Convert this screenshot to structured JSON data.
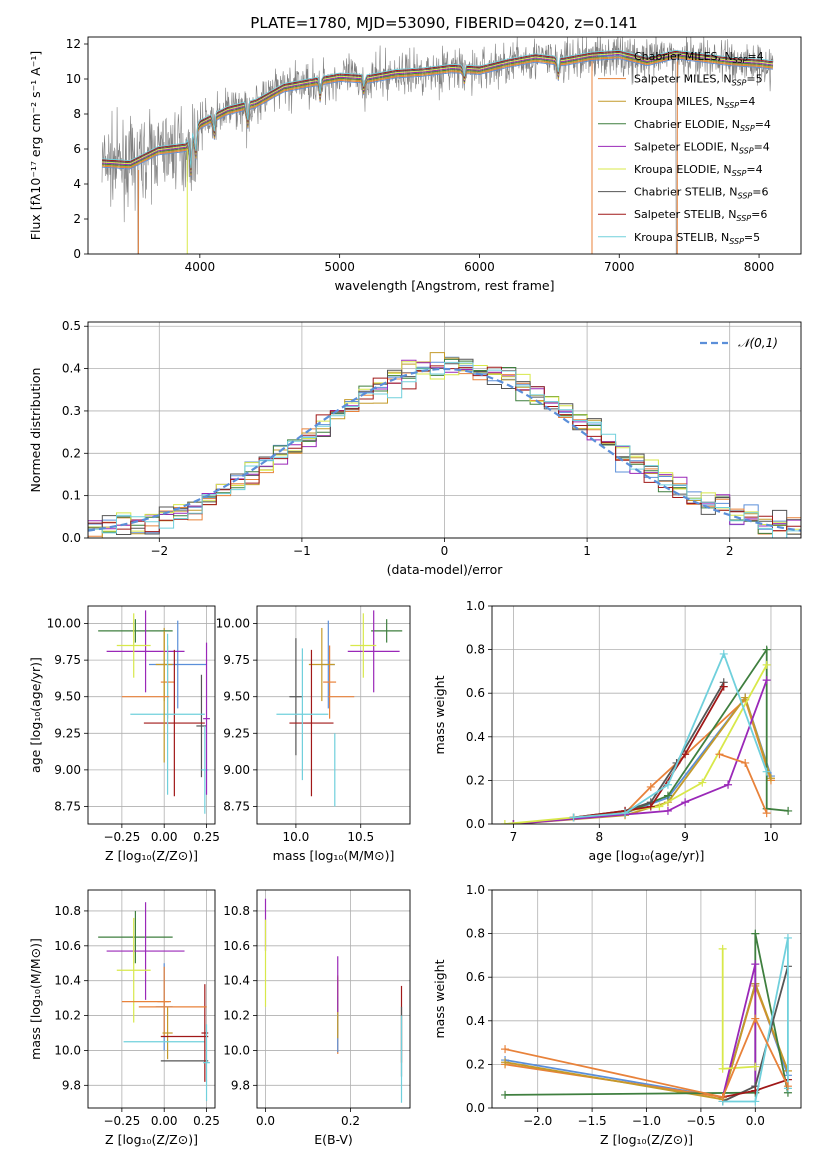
{
  "figure": {
    "title": "PLATE=1780, MJD=53090, FIBERID=0420, z=0.141"
  },
  "colors": {
    "chabrier_miles": "#5b8fd9",
    "salpeter_miles": "#e8823a",
    "kroupa_miles": "#c49a2a",
    "chabrier_elodie": "#3f7f3f",
    "salpeter_elodie": "#9a28b8",
    "kroupa_elodie": "#d8e84a",
    "chabrier_stelib": "#555555",
    "salpeter_stelib": "#a01818",
    "kroupa_stelib": "#70d0dc",
    "normal": "#5b8fd9",
    "data": "#808080"
  },
  "legend_labels": [
    {
      "key": "chabrier_miles",
      "label": "Chabrier MILES, N",
      "sub": "SSP",
      "val": "=4"
    },
    {
      "key": "salpeter_miles",
      "label": "Salpeter MILES, N",
      "sub": "SSP",
      "val": "=5"
    },
    {
      "key": "kroupa_miles",
      "label": "Kroupa MILES, N",
      "sub": "SSP",
      "val": "=4"
    },
    {
      "key": "chabrier_elodie",
      "label": "Chabrier ELODIE, N",
      "sub": "SSP",
      "val": "=4"
    },
    {
      "key": "salpeter_elodie",
      "label": "Salpeter ELODIE, N",
      "sub": "SSP",
      "val": "=4"
    },
    {
      "key": "kroupa_elodie",
      "label": "Kroupa ELODIE, N",
      "sub": "SSP",
      "val": "=4"
    },
    {
      "key": "chabrier_stelib",
      "label": "Chabrier STELIB, N",
      "sub": "SSP",
      "val": "=6"
    },
    {
      "key": "salpeter_stelib",
      "label": "Salpeter STELIB, N",
      "sub": "SSP",
      "val": "=6"
    },
    {
      "key": "kroupa_stelib",
      "label": "Kroupa STELIB, N",
      "sub": "SSP",
      "val": "=5"
    }
  ],
  "chart_data": [
    {
      "id": "spectrum",
      "type": "line",
      "xlabel": "wavelength [Angstrom, rest frame]",
      "ylabel": "Flux [fλ10⁻¹⁷ erg cm⁻² s⁻¹ A⁻¹]",
      "xlim": [
        3200,
        8300
      ],
      "ylim": [
        0,
        12.4
      ],
      "xticks": [
        4000,
        5000,
        6000,
        7000,
        8000
      ],
      "yticks": [
        0,
        2,
        4,
        6,
        8,
        10,
        12
      ],
      "grid": false,
      "legend": "top-right",
      "continuum_nodes": [
        [
          3300,
          5.2
        ],
        [
          3500,
          5.1
        ],
        [
          3700,
          5.9
        ],
        [
          3900,
          6.1
        ],
        [
          4000,
          7.4
        ],
        [
          4200,
          8.2
        ],
        [
          4400,
          8.6
        ],
        [
          4600,
          9.5
        ],
        [
          4800,
          9.8
        ],
        [
          5000,
          10.1
        ],
        [
          5200,
          10.0
        ],
        [
          5400,
          10.3
        ],
        [
          5600,
          10.4
        ],
        [
          5800,
          10.6
        ],
        [
          6000,
          10.5
        ],
        [
          6200,
          10.9
        ],
        [
          6400,
          11.2
        ],
        [
          6600,
          11.0
        ],
        [
          6800,
          11.3
        ],
        [
          7000,
          11.4
        ],
        [
          7200,
          11.0
        ],
        [
          7400,
          11.4
        ],
        [
          7600,
          11.2
        ],
        [
          7800,
          11.0
        ],
        [
          8000,
          10.9
        ],
        [
          8100,
          10.8
        ]
      ]
    },
    {
      "id": "residuals",
      "type": "histogram",
      "xlabel": "(data-model)/error",
      "ylabel": "Normed distribution",
      "xlim": [
        -2.5,
        2.5
      ],
      "ylim": [
        0,
        0.51
      ],
      "xticks": [
        -2,
        -1,
        0,
        1,
        2
      ],
      "yticks": [
        0.0,
        0.1,
        0.2,
        0.3,
        0.4,
        0.5
      ],
      "grid": true,
      "legend": "top-right",
      "reference_curve": "𝒩(0,1)",
      "bin_width": 0.1
    },
    {
      "id": "age_vs_Z",
      "type": "errorbar",
      "xlabel": "Z [log₁₀(Z/Z⊙)]",
      "ylabel": "age  [log₁₀(age/yr)]",
      "xlim": [
        -0.45,
        0.3
      ],
      "ylim": [
        8.63,
        10.12
      ],
      "xticks": [
        -0.25,
        0.0,
        0.25
      ],
      "yticks": [
        8.75,
        9.0,
        9.25,
        9.5,
        9.75,
        10.0
      ],
      "grid": true,
      "points": [
        {
          "s": "chabrier_miles",
          "x": 0.08,
          "y": 9.72,
          "xe": 0.17,
          "ye": 0.3
        },
        {
          "s": "salpeter_miles",
          "x": 0.02,
          "y": 9.6,
          "xe": 0.04,
          "ye": 0.25
        },
        {
          "s": "kroupa_miles",
          "x": 0.0,
          "y": 9.72,
          "xe": 0.05,
          "ye": 0.25
        },
        {
          "s": "chabrier_elodie",
          "x": -0.17,
          "y": 9.95,
          "xe": 0.22,
          "ye": 0.08
        },
        {
          "s": "salpeter_elodie",
          "x": -0.11,
          "y": 9.81,
          "xe": 0.23,
          "ye": 0.28
        },
        {
          "s": "kroupa_elodie",
          "x": -0.18,
          "y": 9.85,
          "xe": 0.1,
          "ye": 0.22
        },
        {
          "s": "chabrier_stelib",
          "x": 0.22,
          "y": 9.3,
          "xe": 0.03,
          "ye": 0.35
        },
        {
          "s": "salpeter_stelib",
          "x": 0.06,
          "y": 9.32,
          "xe": 0.18,
          "ye": 0.5
        },
        {
          "s": "kroupa_stelib",
          "x": 0.02,
          "y": 9.38,
          "xe": 0.22,
          "ye": 0.55
        },
        {
          "s": "kroupa_stelib",
          "x": 0.24,
          "y": 9.0,
          "xe": 0.02,
          "ye": 0.3
        },
        {
          "s": "salpeter_elodie",
          "x": 0.25,
          "y": 9.35,
          "xe": 0.02,
          "ye": 0.52
        },
        {
          "s": "kroupa_miles",
          "x": 0.0,
          "y": 9.5,
          "xe": 0.0,
          "ye": 0.45
        },
        {
          "s": "salpeter_miles",
          "x": -0.11,
          "y": 9.5,
          "xe": 0.14,
          "ye": 0.0
        }
      ]
    },
    {
      "id": "age_vs_mass",
      "type": "errorbar",
      "xlabel": "mass [log₁₀(M/M⊙)]",
      "ylabel": "",
      "xlim": [
        9.7,
        10.88
      ],
      "ylim": [
        8.63,
        10.12
      ],
      "xticks": [
        10.0,
        10.5
      ],
      "yticks": [
        8.75,
        9.0,
        9.25,
        9.5,
        9.75,
        10.0
      ],
      "grid": true,
      "points": [
        {
          "s": "chabrier_miles",
          "x": 10.25,
          "y": 9.72,
          "xe": 0.05,
          "ye": 0.3
        },
        {
          "s": "salpeter_miles",
          "x": 10.26,
          "y": 9.6,
          "xe": 0.05,
          "ye": 0.25
        },
        {
          "s": "kroupa_miles",
          "x": 10.2,
          "y": 9.72,
          "xe": 0.1,
          "ye": 0.25
        },
        {
          "s": "chabrier_elodie",
          "x": 10.7,
          "y": 9.95,
          "xe": 0.12,
          "ye": 0.08
        },
        {
          "s": "salpeter_elodie",
          "x": 10.6,
          "y": 9.81,
          "xe": 0.2,
          "ye": 0.28
        },
        {
          "s": "kroupa_elodie",
          "x": 10.52,
          "y": 9.85,
          "xe": 0.1,
          "ye": 0.22
        },
        {
          "s": "chabrier_stelib",
          "x": 10.0,
          "y": 9.5,
          "xe": 0.05,
          "ye": 0.4
        },
        {
          "s": "salpeter_stelib",
          "x": 10.12,
          "y": 9.32,
          "xe": 0.17,
          "ye": 0.5
        },
        {
          "s": "kroupa_stelib",
          "x": 10.05,
          "y": 9.38,
          "xe": 0.2,
          "ye": 0.45
        },
        {
          "s": "salpeter_miles",
          "x": 10.35,
          "y": 9.5,
          "xe": 0.1,
          "ye": 0.0
        },
        {
          "s": "kroupa_stelib",
          "x": 10.3,
          "y": 9.0,
          "xe": 0.0,
          "ye": 0.25
        }
      ]
    },
    {
      "id": "weight_vs_age",
      "type": "line",
      "xlabel": "age  [log₁₀(age/yr)]",
      "ylabel": "mass weight",
      "xlim": [
        6.75,
        10.35
      ],
      "ylim": [
        0,
        1.0
      ],
      "xticks": [
        7,
        8,
        9,
        10
      ],
      "yticks": [
        0.0,
        0.2,
        0.4,
        0.6,
        0.8,
        1.0
      ],
      "grid": true,
      "series": [
        {
          "s": "chabrier_miles",
          "x": [
            7.0,
            8.3,
            8.8,
            9.7,
            10.0
          ],
          "y": [
            0.0,
            0.05,
            0.12,
            0.58,
            0.22
          ]
        },
        {
          "s": "salpeter_miles",
          "x": [
            7.0,
            8.3,
            8.6,
            9.7,
            10.0
          ],
          "y": [
            0.0,
            0.05,
            0.17,
            0.57,
            0.2
          ]
        },
        {
          "s": "kroupa_miles",
          "x": [
            7.0,
            8.3,
            8.8,
            9.7,
            10.0
          ],
          "y": [
            0.0,
            0.04,
            0.1,
            0.58,
            0.21
          ]
        },
        {
          "s": "chabrier_elodie",
          "x": [
            7.0,
            8.3,
            8.8,
            9.95,
            9.95,
            10.2
          ],
          "y": [
            0.0,
            0.05,
            0.13,
            0.8,
            0.07,
            0.06
          ]
        },
        {
          "s": "salpeter_elodie",
          "x": [
            7.0,
            8.8,
            9.0,
            9.5,
            9.95
          ],
          "y": [
            0.0,
            0.06,
            0.1,
            0.18,
            0.66
          ]
        },
        {
          "s": "kroupa_elodie",
          "x": [
            6.9,
            7.7,
            8.7,
            9.2,
            9.95
          ],
          "y": [
            0.0,
            0.03,
            0.08,
            0.19,
            0.73
          ]
        },
        {
          "s": "chabrier_stelib",
          "x": [
            7.7,
            8.3,
            8.6,
            8.9,
            9.45
          ],
          "y": [
            0.03,
            0.06,
            0.1,
            0.28,
            0.65
          ]
        },
        {
          "s": "salpeter_stelib",
          "x": [
            7.7,
            8.3,
            8.6,
            9.0,
            9.45
          ],
          "y": [
            0.03,
            0.06,
            0.08,
            0.32,
            0.63
          ]
        },
        {
          "s": "kroupa_stelib",
          "x": [
            7.7,
            8.3,
            8.8,
            9.45,
            9.95
          ],
          "y": [
            0.03,
            0.05,
            0.18,
            0.78,
            0.24
          ]
        },
        {
          "s": "salpeter_miles",
          "x": [
            9.4,
            9.7,
            9.95
          ],
          "y": [
            0.32,
            0.28,
            0.05
          ]
        }
      ]
    },
    {
      "id": "mass_vs_Z",
      "type": "errorbar",
      "xlabel": "Z [log₁₀(Z/Z⊙)]",
      "ylabel": "mass [log₁₀(M/M⊙)]",
      "xlim": [
        -0.45,
        0.3
      ],
      "ylim": [
        9.67,
        10.92
      ],
      "xticks": [
        -0.25,
        0.0,
        0.25
      ],
      "yticks": [
        9.8,
        10.0,
        10.2,
        10.4,
        10.6,
        10.8
      ],
      "grid": true,
      "points": [
        {
          "s": "chabrier_miles",
          "x": 0.0,
          "y": 10.25,
          "xe": 0.05,
          "ye": 0.25
        },
        {
          "s": "salpeter_miles",
          "x": 0.0,
          "y": 10.28,
          "xe": 0.04,
          "ye": 0.2
        },
        {
          "s": "kroupa_miles",
          "x": 0.02,
          "y": 10.1,
          "xe": 0.03,
          "ye": 0.15
        },
        {
          "s": "chabrier_elodie",
          "x": -0.17,
          "y": 10.65,
          "xe": 0.22,
          "ye": 0.15
        },
        {
          "s": "salpeter_elodie",
          "x": -0.11,
          "y": 10.57,
          "xe": 0.23,
          "ye": 0.28
        },
        {
          "s": "kroupa_elodie",
          "x": -0.18,
          "y": 10.46,
          "xe": 0.1,
          "ye": 0.3
        },
        {
          "s": "chabrier_stelib",
          "x": 0.12,
          "y": 9.94,
          "xe": 0.14,
          "ye": 0.0
        },
        {
          "s": "salpeter_stelib",
          "x": 0.12,
          "y": 10.08,
          "xe": 0.14,
          "ye": 0.0
        },
        {
          "s": "kroupa_stelib",
          "x": 0.0,
          "y": 10.05,
          "xe": 0.24,
          "ye": 0.0
        },
        {
          "s": "salpeter_stelib",
          "x": 0.24,
          "y": 10.1,
          "xe": 0.02,
          "ye": 0.28
        },
        {
          "s": "salpeter_miles",
          "x": 0.05,
          "y": 10.25,
          "xe": 0.2,
          "ye": 0.0
        },
        {
          "s": "kroupa_stelib",
          "x": 0.25,
          "y": 9.93,
          "xe": 0.02,
          "ye": 0.22
        },
        {
          "s": "salpeter_miles",
          "x": -0.11,
          "y": 10.28,
          "xe": 0.14,
          "ye": 0.0
        }
      ]
    },
    {
      "id": "mass_vs_EBV",
      "type": "errorbar",
      "xlabel": "E(B-V)",
      "ylabel": "",
      "xlim": [
        -0.02,
        0.34
      ],
      "ylim": [
        9.67,
        10.92
      ],
      "xticks": [
        0.0,
        0.2
      ],
      "yticks": [
        9.8,
        10.0,
        10.2,
        10.4,
        10.6,
        10.8
      ],
      "grid": true,
      "points": [
        {
          "s": "salpeter_elodie",
          "x": 0.0,
          "y": 10.72,
          "xe": 0.0,
          "ye": 0.15
        },
        {
          "s": "kroupa_elodie",
          "x": 0.0,
          "y": 10.5,
          "xe": 0.0,
          "ye": 0.25
        },
        {
          "s": "salpeter_miles",
          "x": 0.17,
          "y": 10.2,
          "xe": 0.0,
          "ye": 0.22
        },
        {
          "s": "chabrier_miles",
          "x": 0.17,
          "y": 10.15,
          "xe": 0.0,
          "ye": 0.16
        },
        {
          "s": "kroupa_miles",
          "x": 0.17,
          "y": 10.25,
          "xe": 0.0,
          "ye": 0.18
        },
        {
          "s": "salpeter_elodie",
          "x": 0.17,
          "y": 10.38,
          "xe": 0.0,
          "ye": 0.16
        },
        {
          "s": "salpeter_stelib",
          "x": 0.32,
          "y": 10.15,
          "xe": 0.0,
          "ye": 0.22
        },
        {
          "s": "chabrier_stelib",
          "x": 0.32,
          "y": 10.05,
          "xe": 0.0,
          "ye": 0.2
        },
        {
          "s": "kroupa_stelib",
          "x": 0.32,
          "y": 9.95,
          "xe": 0.0,
          "ye": 0.25
        }
      ]
    },
    {
      "id": "weight_vs_Z",
      "type": "line",
      "xlabel": "Z [log₁₀(Z/Z⊙)]",
      "ylabel": "mass weight",
      "xlim": [
        -2.42,
        0.42
      ],
      "ylim": [
        0,
        1.0
      ],
      "xticks": [
        -2.0,
        -1.5,
        -1.0,
        -0.5,
        0.0
      ],
      "yticks": [
        0.0,
        0.2,
        0.4,
        0.6,
        0.8,
        1.0
      ],
      "grid": true,
      "series": [
        {
          "s": "chabrier_miles",
          "x": [
            -2.3,
            -0.3,
            0.0,
            0.3
          ],
          "y": [
            0.22,
            0.05,
            0.57,
            0.15
          ]
        },
        {
          "s": "salpeter_miles",
          "x": [
            -2.3,
            -0.3,
            0.0,
            0.3
          ],
          "y": [
            0.2,
            0.05,
            0.56,
            0.17
          ]
        },
        {
          "s": "kroupa_miles",
          "x": [
            -2.3,
            -0.3,
            0.0,
            0.3
          ],
          "y": [
            0.21,
            0.04,
            0.57,
            0.17
          ]
        },
        {
          "s": "chabrier_elodie",
          "x": [
            -2.3,
            0.0,
            0.0,
            0.3
          ],
          "y": [
            0.06,
            0.07,
            0.8,
            0.07
          ]
        },
        {
          "s": "salpeter_elodie",
          "x": [
            -0.3,
            0.0,
            0.0
          ],
          "y": [
            0.05,
            0.66,
            0.1
          ]
        },
        {
          "s": "kroupa_elodie",
          "x": [
            -0.3,
            -0.3,
            0.0
          ],
          "y": [
            0.73,
            0.18,
            0.19
          ]
        },
        {
          "s": "chabrier_stelib",
          "x": [
            -0.3,
            0.0,
            0.3
          ],
          "y": [
            0.03,
            0.1,
            0.65
          ]
        },
        {
          "s": "salpeter_stelib",
          "x": [
            -0.3,
            0.0,
            0.3
          ],
          "y": [
            0.05,
            0.08,
            0.13
          ]
        },
        {
          "s": "kroupa_stelib",
          "x": [
            -0.3,
            0.0,
            0.3,
            0.3
          ],
          "y": [
            0.03,
            0.03,
            0.78,
            0.09
          ]
        },
        {
          "s": "salpeter_miles",
          "x": [
            -2.3,
            -0.3,
            0.0,
            0.3
          ],
          "y": [
            0.27,
            0.05,
            0.41,
            0.1
          ]
        }
      ]
    }
  ]
}
